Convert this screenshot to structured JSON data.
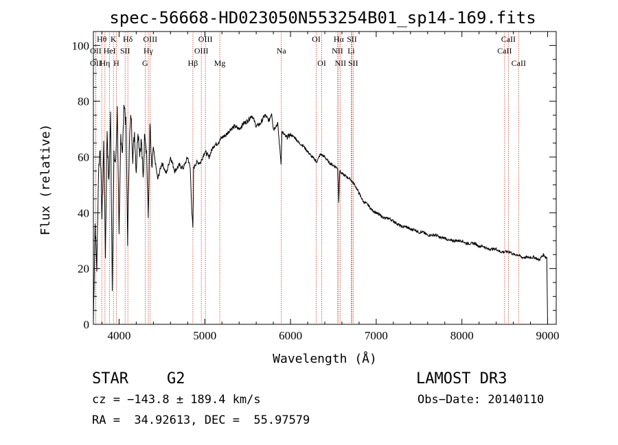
{
  "chart_data": {
    "type": "line",
    "title": "spec-56668-HD023050N553254B01_sp14-169.fits",
    "xlabel": "Wavelength (Å)",
    "ylabel": "Flux (relative)",
    "xlim": [
      3700,
      9100
    ],
    "ylim": [
      0,
      105
    ],
    "xticks": [
      4000,
      5000,
      6000,
      7000,
      8000,
      9000
    ],
    "xtick_labels": [
      "4000",
      "5000",
      "6000",
      "7000",
      "8000",
      "9000"
    ],
    "yticks": [
      0,
      20,
      40,
      60,
      80,
      100
    ],
    "ytick_labels": [
      "0",
      "20",
      "40",
      "60",
      "80",
      "100"
    ],
    "grid": false,
    "series": [
      {
        "name": "spectrum",
        "x": [
          3700,
          3720,
          3740,
          3760,
          3780,
          3800,
          3820,
          3840,
          3860,
          3880,
          3900,
          3920,
          3940,
          3960,
          3980,
          4000,
          4020,
          4040,
          4060,
          4080,
          4100,
          4120,
          4140,
          4160,
          4180,
          4200,
          4220,
          4240,
          4260,
          4280,
          4300,
          4320,
          4340,
          4360,
          4380,
          4400,
          4450,
          4500,
          4550,
          4600,
          4650,
          4700,
          4750,
          4800,
          4830,
          4850,
          4861,
          4870,
          4900,
          4950,
          5000,
          5050,
          5100,
          5150,
          5200,
          5250,
          5300,
          5350,
          5400,
          5450,
          5500,
          5550,
          5600,
          5650,
          5700,
          5750,
          5780,
          5800,
          5850,
          5890,
          5900,
          5950,
          6000,
          6050,
          6100,
          6150,
          6200,
          6250,
          6290,
          6300,
          6350,
          6400,
          6450,
          6500,
          6550,
          6563,
          6575,
          6600,
          6650,
          6700,
          6750,
          6800,
          6850,
          6900,
          6950,
          7000,
          7050,
          7100,
          7150,
          7200,
          7250,
          7300,
          7350,
          7400,
          7450,
          7500,
          7550,
          7600,
          7650,
          7700,
          7750,
          7800,
          7850,
          7900,
          7950,
          8000,
          8050,
          8100,
          8150,
          8200,
          8250,
          8300,
          8350,
          8400,
          8450,
          8500,
          8540,
          8560,
          8600,
          8650,
          8700,
          8750,
          8800,
          8850,
          8900,
          8950,
          8980,
          8990,
          9000
        ],
        "y": [
          1,
          36,
          20,
          55,
          64,
          38,
          65,
          25,
          70,
          50,
          75,
          14,
          60,
          58,
          77,
          30,
          68,
          62,
          80,
          72,
          30,
          66,
          75,
          60,
          69,
          55,
          70,
          62,
          66,
          52,
          70,
          62,
          38,
          72,
          55,
          63,
          52,
          58,
          54,
          60,
          55,
          57,
          56,
          60,
          56,
          40,
          34,
          56,
          58,
          58,
          62,
          60,
          64,
          65,
          67,
          68,
          70,
          71,
          70,
          72,
          73,
          75,
          71,
          72,
          75,
          73,
          76,
          70,
          72,
          58,
          69,
          67,
          68,
          67,
          65,
          64,
          62,
          60,
          59,
          58,
          61,
          60,
          58,
          57,
          56,
          44,
          55,
          54,
          53,
          52,
          50,
          47,
          44,
          43,
          41,
          40,
          39,
          38,
          38,
          37,
          36,
          35,
          35,
          34,
          34,
          33,
          33,
          32,
          32,
          32,
          31,
          31,
          30,
          30,
          30,
          30,
          29,
          29,
          29,
          28,
          28,
          27,
          27,
          27,
          26,
          26,
          26,
          26,
          25,
          25,
          24,
          24,
          24,
          24,
          23,
          25,
          24,
          24,
          0
        ]
      }
    ],
    "lines": [
      {
        "label": "OII",
        "wavelength": 3727,
        "row": 2
      },
      {
        "label": "Hθ",
        "wavelength": 3798,
        "row": 1
      },
      {
        "label": "OII",
        "wavelength": 3727,
        "row": 3
      },
      {
        "label": "Hη",
        "wavelength": 3835,
        "row": 3
      },
      {
        "label": "HeI",
        "wavelength": 3889,
        "row": 2
      },
      {
        "label": "K",
        "wavelength": 3934,
        "row": 1
      },
      {
        "label": "H",
        "wavelength": 3968,
        "row": 3
      },
      {
        "label": "SII",
        "wavelength": 4070,
        "row": 2
      },
      {
        "label": "Hδ",
        "wavelength": 4102,
        "row": 1
      },
      {
        "label": "G",
        "wavelength": 4304,
        "row": 3
      },
      {
        "label": "Hγ",
        "wavelength": 4341,
        "row": 2
      },
      {
        "label": "OIII",
        "wavelength": 4363,
        "row": 1
      },
      {
        "label": "Hβ",
        "wavelength": 4861,
        "row": 3
      },
      {
        "label": "OIII",
        "wavelength": 4959,
        "row": 2
      },
      {
        "label": "OIII",
        "wavelength": 5007,
        "row": 1
      },
      {
        "label": "Mg",
        "wavelength": 5175,
        "row": 3
      },
      {
        "label": "Na",
        "wavelength": 5893,
        "row": 2
      },
      {
        "label": "OI",
        "wavelength": 6300,
        "row": 1
      },
      {
        "label": "OI",
        "wavelength": 6364,
        "row": 3
      },
      {
        "label": "NII",
        "wavelength": 6548,
        "row": 2
      },
      {
        "label": "Hα",
        "wavelength": 6563,
        "row": 1
      },
      {
        "label": "NII",
        "wavelength": 6583,
        "row": 3
      },
      {
        "label": "Li",
        "wavelength": 6708,
        "row": 2
      },
      {
        "label": "SII",
        "wavelength": 6716,
        "row": 1
      },
      {
        "label": "SII",
        "wavelength": 6731,
        "row": 3
      },
      {
        "label": "CaII",
        "wavelength": 8498,
        "row": 2
      },
      {
        "label": "CaII",
        "wavelength": 8542,
        "row": 1
      },
      {
        "label": "CaII",
        "wavelength": 8662,
        "row": 3
      }
    ]
  },
  "info": {
    "object": "STAR",
    "subclass": "G2",
    "survey": "LAMOST DR3",
    "cz": "cz = −143.8 ± 189.4 km/s",
    "obs_date": "Obs−Date: 20140110",
    "coords": "RA =  34.92613, DEC =  55.97579"
  }
}
